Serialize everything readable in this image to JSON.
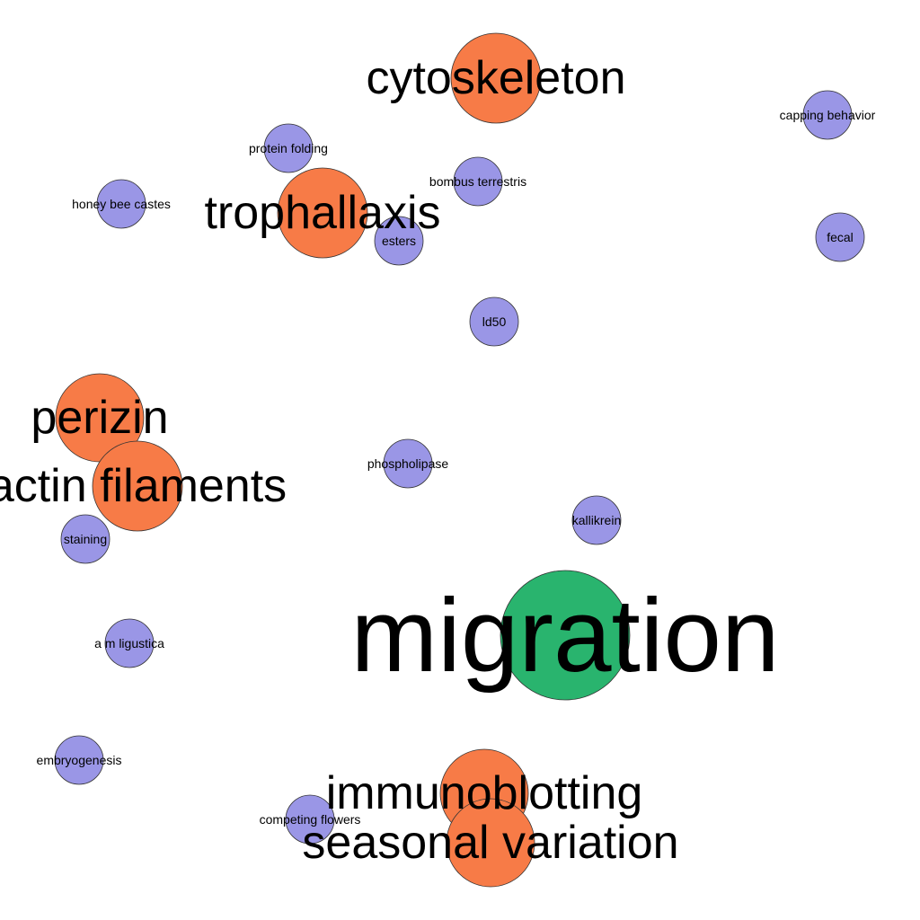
{
  "colors": {
    "major": "#f77b47",
    "minor": "#9a96e6",
    "focus": "#29b46e",
    "outline": "#333333",
    "label": "#000000"
  },
  "nodes": [
    {
      "id": "cytoskeleton",
      "label": "cytoskeleton",
      "group": "major"
    },
    {
      "id": "trophallaxis",
      "label": "trophallaxis",
      "group": "major"
    },
    {
      "id": "perizin",
      "label": "perizin",
      "group": "major"
    },
    {
      "id": "actin-filaments",
      "label": "actin filaments",
      "group": "major"
    },
    {
      "id": "migration",
      "label": "migration",
      "group": "focus"
    },
    {
      "id": "immunoblotting",
      "label": "immunoblotting",
      "group": "major"
    },
    {
      "id": "seasonal-variation",
      "label": "seasonal variation",
      "group": "major"
    },
    {
      "id": "protein-folding",
      "label": "protein folding",
      "group": "minor"
    },
    {
      "id": "capping-behavior",
      "label": "capping behavior",
      "group": "minor"
    },
    {
      "id": "bombus-terrestris",
      "label": "bombus terrestris",
      "group": "minor"
    },
    {
      "id": "honey-bee-castes",
      "label": "honey bee castes",
      "group": "minor"
    },
    {
      "id": "esters",
      "label": "esters",
      "group": "minor"
    },
    {
      "id": "fecal",
      "label": "fecal",
      "group": "minor"
    },
    {
      "id": "ld50",
      "label": "ld50",
      "group": "minor"
    },
    {
      "id": "phospholipase",
      "label": "phospholipase",
      "group": "minor"
    },
    {
      "id": "kallikrein",
      "label": "kallikrein",
      "group": "minor"
    },
    {
      "id": "staining",
      "label": "staining",
      "group": "minor"
    },
    {
      "id": "a-m-ligustica",
      "label": "a m ligustica",
      "group": "minor"
    },
    {
      "id": "embryogenesis",
      "label": "embryogenesis",
      "group": "minor"
    },
    {
      "id": "competing-flowers",
      "label": "competing flowers",
      "group": "minor"
    }
  ]
}
